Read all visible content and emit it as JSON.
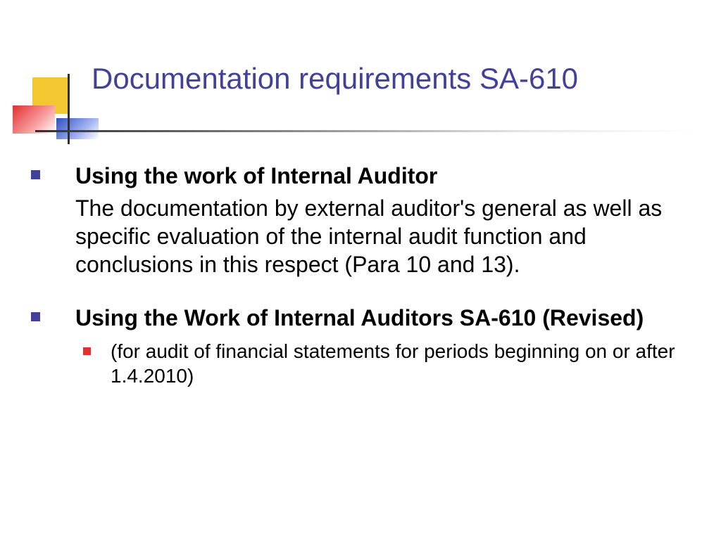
{
  "slide": {
    "title": "Documentation requirements SA-610",
    "title_color": "#42419a",
    "bullet_color": "#42419a",
    "sub_bullet_color": "#e03030",
    "items": [
      {
        "heading": "Using the work of  Internal Auditor",
        "body": "The documentation by external auditor's general as well as specific evaluation of the internal audit function and conclusions in this respect (Para 10 and 13)."
      },
      {
        "heading": "Using the Work of Internal Auditors  SA-610 (Revised)",
        "sub": "(for audit of financial statements for periods beginning on or after 1.4.2010)"
      }
    ]
  },
  "styling": {
    "background_color": "#ffffff",
    "title_fontsize": 42,
    "heading_fontsize": 32,
    "body_fontsize": 32,
    "sub_fontsize": 28,
    "decoration_colors": {
      "yellow": "#f4c730",
      "red": "#e03030",
      "blue": "#3050c0"
    }
  }
}
